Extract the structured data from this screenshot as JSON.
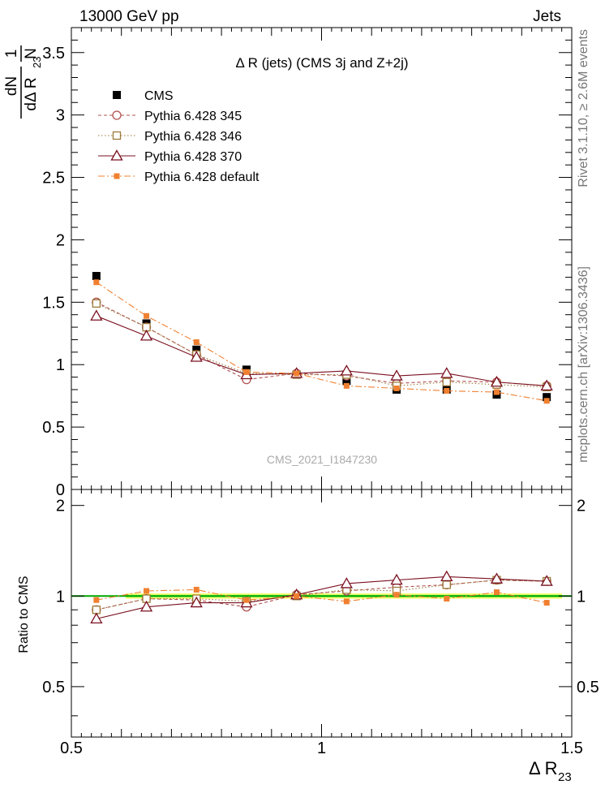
{
  "header": {
    "left": "13000 GeV pp",
    "right": "Jets"
  },
  "side": {
    "rivet": "Rivet 3.1.10, ≥ 2.6M events",
    "mcplots": "mcplots.cern.ch [arXiv:1306.3436]"
  },
  "watermark": "CMS_2021_I1847230",
  "ytitle_top": {
    "frac_num": "1",
    "frac_den": "N",
    "d_num": "dN",
    "d_den": "dΔ R",
    "sub": "23"
  },
  "ytitle_bottom": "Ratio to CMS",
  "xtitle": {
    "main": "Δ R",
    "sub": "23"
  },
  "chart_data": [
    {
      "type": "line",
      "title": "Δ R (jets) (CMS 3j and Z+2j)",
      "xlim": [
        0.5,
        1.5
      ],
      "ylim": [
        0,
        3.7
      ],
      "yticks": [
        0,
        0.5,
        1,
        1.5,
        2,
        2.5,
        3,
        3.5
      ],
      "ytick_labels": [
        "0",
        "0.5",
        "1",
        "1.5",
        "2",
        "2.5",
        "3",
        "3.5"
      ],
      "x": [
        0.55,
        0.65,
        0.75,
        0.85,
        0.95,
        1.05,
        1.15,
        1.25,
        1.35,
        1.45
      ],
      "legend_position": "top-left",
      "series": [
        {
          "name": "CMS",
          "color": "#000000",
          "marker": "square-filled",
          "line": "none",
          "values": [
            1.71,
            1.33,
            1.12,
            0.96,
            0.92,
            0.87,
            0.8,
            0.8,
            0.76,
            0.74
          ]
        },
        {
          "name": "Pythia 6.428 345",
          "color": "#b05050",
          "marker": "circle-open",
          "line": "dashed",
          "values": [
            1.5,
            1.3,
            1.08,
            0.88,
            0.93,
            0.91,
            0.85,
            0.87,
            0.86,
            0.83
          ]
        },
        {
          "name": "Pythia 6.428 346",
          "color": "#9c7a3a",
          "marker": "square-open",
          "line": "dotted",
          "values": [
            1.49,
            1.3,
            1.08,
            0.93,
            0.92,
            0.92,
            0.83,
            0.86,
            0.84,
            0.82
          ]
        },
        {
          "name": "Pythia 6.428 370",
          "color": "#7a1020",
          "marker": "triangle-open",
          "line": "solid",
          "values": [
            1.39,
            1.23,
            1.06,
            0.92,
            0.93,
            0.95,
            0.91,
            0.93,
            0.86,
            0.83
          ]
        },
        {
          "name": "Pythia 6.428 default",
          "color": "#f08030",
          "marker": "square-small",
          "line": "dashdot",
          "values": [
            1.66,
            1.39,
            1.18,
            0.94,
            0.93,
            0.83,
            0.81,
            0.79,
            0.78,
            0.71
          ]
        }
      ]
    },
    {
      "type": "line",
      "ylabel": "Ratio to CMS",
      "xlim": [
        0.5,
        1.5
      ],
      "ylim": [
        0.34,
        2.26
      ],
      "xticks": [
        0.5,
        1,
        1.5
      ],
      "xtick_labels": [
        "0.5",
        "1",
        "1.5"
      ],
      "yticks": [
        0.5,
        1,
        2
      ],
      "ytick_labels": [
        "0.5",
        "1",
        "2"
      ],
      "band": {
        "low": 0.98,
        "high": 1.02,
        "inner_low": 0.99,
        "inner_high": 1.01
      },
      "x": [
        0.55,
        0.65,
        0.75,
        0.85,
        0.95,
        1.05,
        1.15,
        1.25,
        1.35,
        1.45
      ],
      "series": [
        {
          "name": "Pythia 6.428 345",
          "color": "#b05050",
          "marker": "circle-open",
          "line": "dashed",
          "values": [
            0.9,
            0.98,
            0.97,
            0.92,
            1.01,
            1.04,
            1.07,
            1.09,
            1.13,
            1.12
          ]
        },
        {
          "name": "Pythia 6.428 346",
          "color": "#9c7a3a",
          "marker": "square-open",
          "line": "dotted",
          "values": [
            0.9,
            0.98,
            0.98,
            0.96,
            1.0,
            1.05,
            1.04,
            1.09,
            1.13,
            1.12
          ]
        },
        {
          "name": "Pythia 6.428 370",
          "color": "#7a1020",
          "marker": "triangle-open",
          "line": "solid",
          "values": [
            0.84,
            0.92,
            0.95,
            0.95,
            1.01,
            1.1,
            1.13,
            1.16,
            1.14,
            1.12
          ]
        },
        {
          "name": "Pythia 6.428 default",
          "color": "#f08030",
          "marker": "square-small",
          "line": "dashdot",
          "values": [
            0.97,
            1.04,
            1.05,
            0.97,
            1.0,
            0.96,
            1.01,
            0.98,
            1.03,
            0.95
          ]
        }
      ]
    }
  ]
}
